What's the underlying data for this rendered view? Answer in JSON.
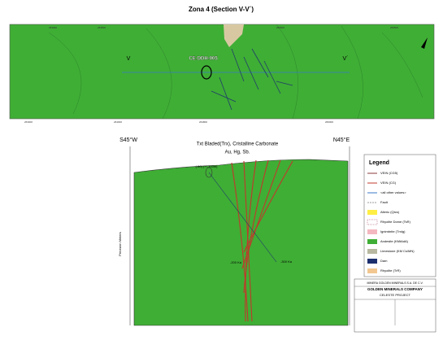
{
  "title": "Zona 4 (Section V-V´)",
  "plan_map": {
    "section_start": "V",
    "section_end": "V´",
    "drillhole": "CE-DDH-005"
  },
  "section": {
    "left_azimuth": "S45°W",
    "right_azimuth": "N45°E",
    "note_line1": "Txt Bladed(Trx), Cristalline Carbonate",
    "note_line2": "Au, Hg, Sb.",
    "hole_label": "(-50) (+/-300m)",
    "depth_label_1": "-200 Ka",
    "depth_label_2": "-300 Ka",
    "axis_label": "Precision Meters"
  },
  "legend": {
    "title": "Legend",
    "items": [
      "VEIN (CG5)",
      "VEIN (CG)",
      "<all other values>",
      "Fault",
      "Alteric (Qtcs)",
      "Rhyolite Dome (TsR)",
      "Ignimbrite (TmIg)",
      "Andesite (KMtAdA)",
      "Limestone (KM Cs/MN)",
      "Dam",
      "Rhyolite (TrR)"
    ]
  },
  "title_block": {
    "company_line": "MINERA GOLDEN MINERALS S.A. DE C.V.",
    "company": "GOLDEN MINERALS COMPANY",
    "project": "CELESTE PROJECT"
  }
}
